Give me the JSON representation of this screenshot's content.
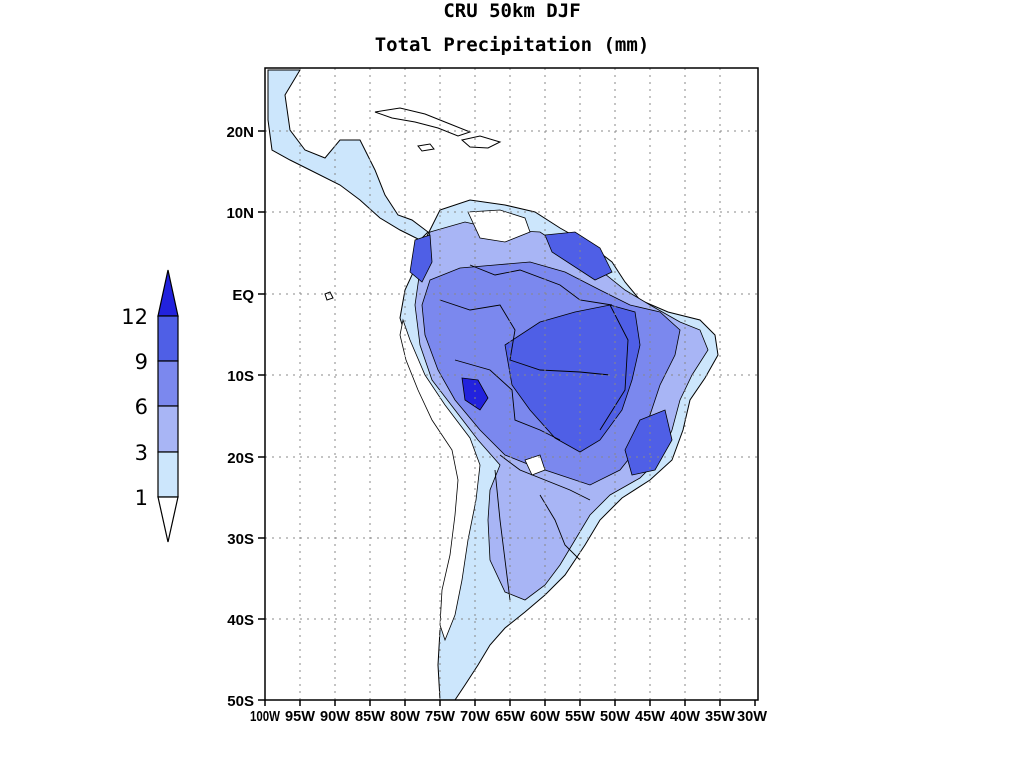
{
  "title": "CRU 50km DJF",
  "subtitle": "Total Precipitation (mm)",
  "colorbar": {
    "levels": [
      "12",
      "9",
      "6",
      "3",
      "1"
    ],
    "colors": [
      "#2222dd",
      "#4f5fe6",
      "#7b88ee",
      "#a8b5f5",
      "#cce6fc",
      "#ffffff"
    ]
  },
  "axes": {
    "lat_labels": [
      "20N",
      "10N",
      "EQ",
      "10S",
      "20S",
      "30S",
      "40S",
      "50S"
    ],
    "lon_labels": [
      "100W",
      "95W",
      "90W",
      "85W",
      "80W",
      "75W",
      "70W",
      "65W",
      "60W",
      "55W",
      "50W",
      "45W",
      "40W",
      "35W",
      "30W"
    ]
  },
  "map_colors": {
    "c1": "#cce6fc",
    "c3": "#a8b5f5",
    "c6": "#7b88ee",
    "c9": "#4f5fe6",
    "c12": "#2222dd"
  }
}
